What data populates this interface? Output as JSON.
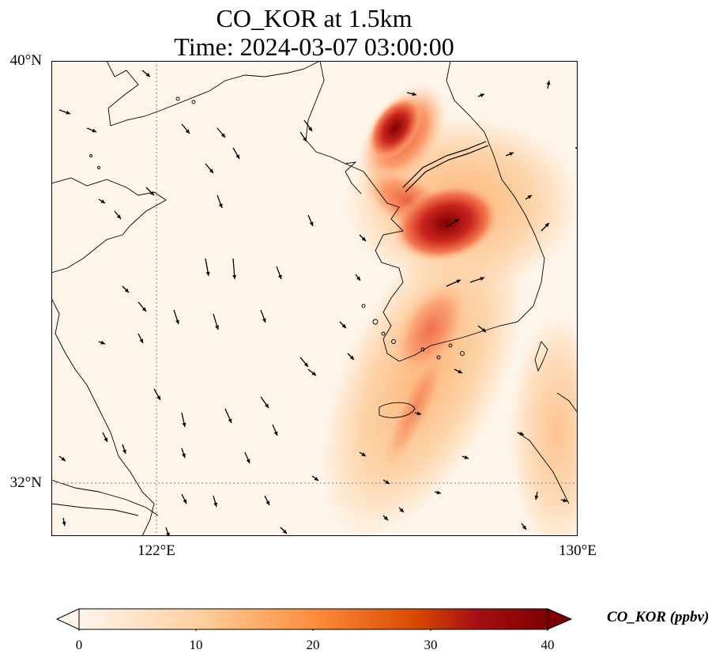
{
  "title_line1": "CO_KOR at 1.5km",
  "title_line2": "Time: 2024-03-07 03:00:00",
  "y_ticks": [
    "40°N",
    "32°N"
  ],
  "x_ticks": [
    "122°E",
    "130°E"
  ],
  "colorbar": {
    "label": "CO_KOR (ppbv)",
    "ticks": [
      "0",
      "10",
      "20",
      "30",
      "40"
    ],
    "range": [
      0,
      40
    ],
    "extend": "both",
    "colors": [
      "#fff5eb",
      "#fdd0a2",
      "#fd8d3c",
      "#d94801",
      "#a50f15",
      "#7f0000"
    ]
  },
  "map_extent": {
    "lon": [
      120,
      130
    ],
    "lat": [
      31,
      40
    ]
  },
  "colors": {
    "land_bg": "#fef5ea",
    "coast": "#000000",
    "grid": "#808080"
  }
}
